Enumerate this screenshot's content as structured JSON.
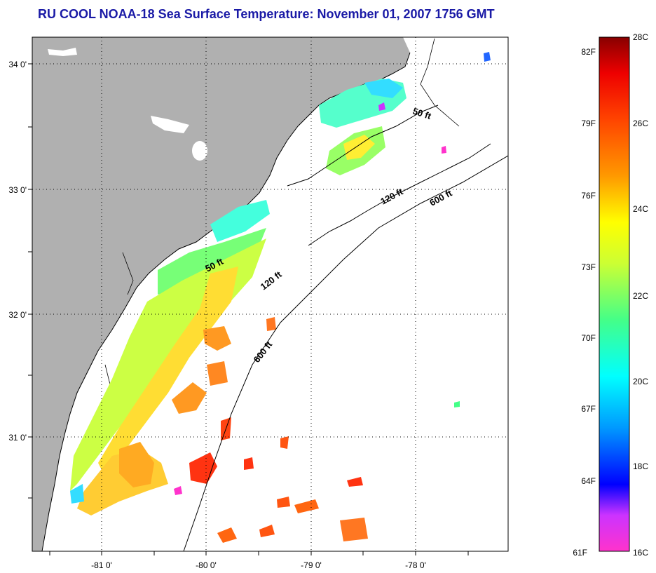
{
  "title": "RU COOL  NOAA-18  Sea Surface Temperature:  November 01, 2007 1756 GMT",
  "map": {
    "lat_labels": [
      "34 0'",
      "33 0'",
      "32 0'",
      "31 0'"
    ],
    "lon_labels": [
      "-81 0'",
      "-80 0'",
      "-79 0'",
      "-78 0'"
    ],
    "contours": [
      "50 ft",
      "120 ft",
      "600 ft",
      "50 ft",
      "120 ft",
      "600 ft"
    ]
  },
  "colorbar": {
    "fahrenheit": [
      "82F",
      "79F",
      "76F",
      "73F",
      "70F",
      "67F",
      "64F",
      "61F"
    ],
    "celsius": [
      "28C",
      "26C",
      "24C",
      "22C",
      "20C",
      "18C",
      "16C"
    ]
  },
  "colors": {
    "land": "#b0b0b0",
    "title": "#1a1aa6"
  }
}
